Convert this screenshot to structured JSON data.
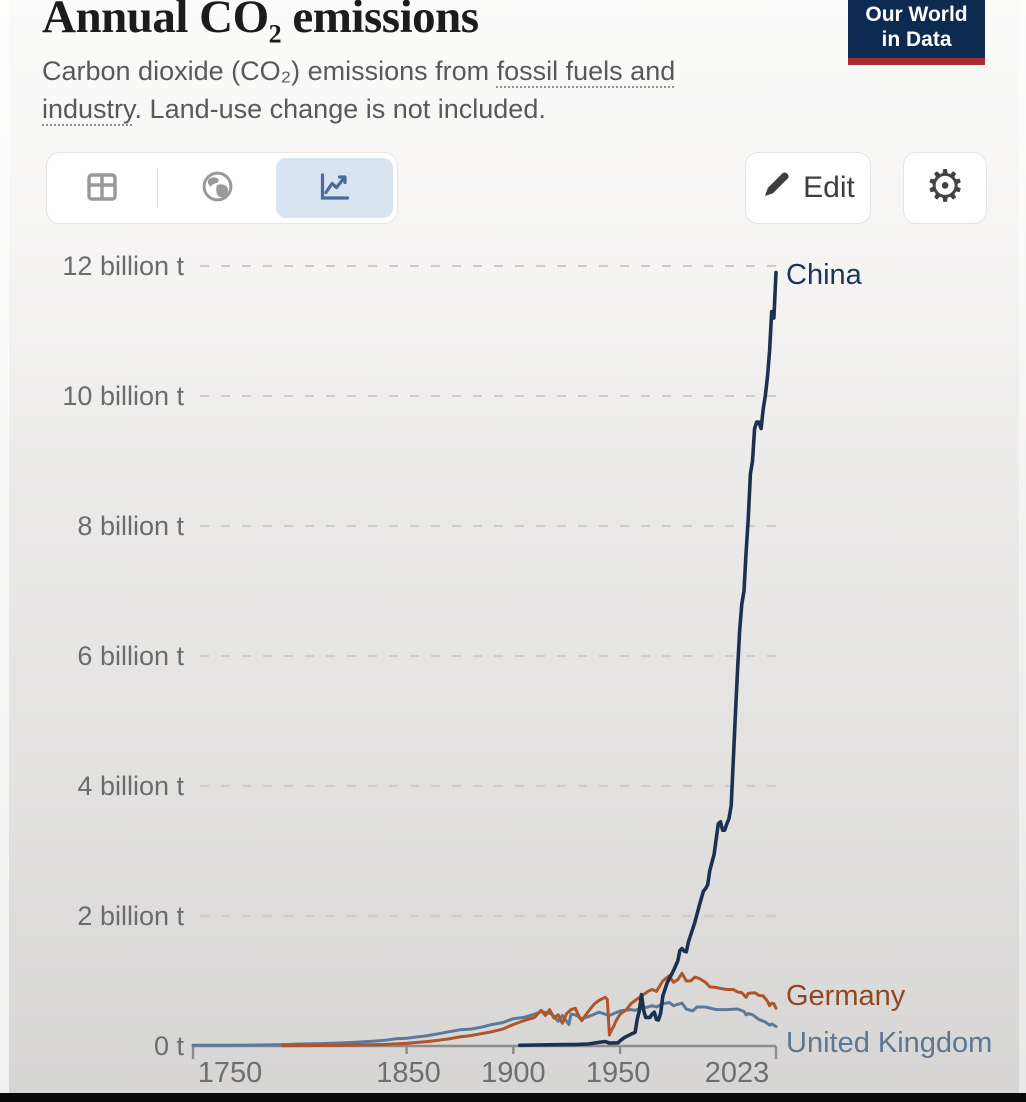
{
  "header": {
    "title": {
      "part1": "Annual CO",
      "subscript": "2",
      "part2": " emissions"
    },
    "subtitle": {
      "line1_prefix": "Carbon dioxide (CO₂) emissions from ",
      "line1_term": "fossil fuels and",
      "line2_term": "industry",
      "line2_suffix": ". Land-use change is not included."
    },
    "logo": {
      "line1": "Our World",
      "line2": "in Data"
    }
  },
  "toolbar": {
    "views": [
      {
        "name": "table-view",
        "icon": "table-icon",
        "active": false
      },
      {
        "name": "map-view",
        "icon": "globe-icon",
        "active": false
      },
      {
        "name": "chart-view",
        "icon": "line-chart-icon",
        "active": true
      }
    ],
    "edit_label": "Edit",
    "settings_icon": "⚙"
  },
  "colors": {
    "logo_navy": "#0d2a51",
    "logo_red": "#a82b35",
    "active_view_bg": "#d9e4f3",
    "active_view_icon": "#4a6a9b",
    "inactive_view_icon": "#999999",
    "gridline": "#cccccb",
    "axis": "#8c8c8c"
  },
  "chart_data": {
    "type": "line",
    "title": "Annual CO₂ emissions",
    "unit": "billion tonnes of CO₂",
    "xlim": [
      1750,
      2023
    ],
    "ylim": [
      0,
      12
    ],
    "grid": "dashed-horizontal",
    "legend_position": "right-end-labels",
    "x_ticks": [
      {
        "year": 1750,
        "label": "1750"
      },
      {
        "year": 1850,
        "label": "1850"
      },
      {
        "year": 1900,
        "label": "1900"
      },
      {
        "year": 1950,
        "label": "1950"
      },
      {
        "year": 2023,
        "label": "2023"
      }
    ],
    "y_ticks": [
      {
        "value": 0,
        "label": "0 t"
      },
      {
        "value": 2,
        "label": "2 billion t"
      },
      {
        "value": 4,
        "label": "4 billion t"
      },
      {
        "value": 6,
        "label": "6 billion t"
      },
      {
        "value": 8,
        "label": "8 billion t"
      },
      {
        "value": 10,
        "label": "10 billion t"
      },
      {
        "value": 12,
        "label": "12 billion t"
      }
    ],
    "series": [
      {
        "name": "China",
        "color": "#1c3150",
        "label_color": "#1d3357",
        "points": [
          [
            1903,
            0.01
          ],
          [
            1910,
            0.015
          ],
          [
            1920,
            0.02
          ],
          [
            1930,
            0.025
          ],
          [
            1935,
            0.03
          ],
          [
            1940,
            0.055
          ],
          [
            1943,
            0.07
          ],
          [
            1945,
            0.045
          ],
          [
            1949,
            0.05
          ],
          [
            1950,
            0.08
          ],
          [
            1952,
            0.13
          ],
          [
            1955,
            0.18
          ],
          [
            1957,
            0.21
          ],
          [
            1958,
            0.41
          ],
          [
            1959,
            0.54
          ],
          [
            1960,
            0.79
          ],
          [
            1961,
            0.55
          ],
          [
            1962,
            0.44
          ],
          [
            1964,
            0.44
          ],
          [
            1965,
            0.49
          ],
          [
            1966,
            0.52
          ],
          [
            1967,
            0.41
          ],
          [
            1968,
            0.4
          ],
          [
            1969,
            0.51
          ],
          [
            1970,
            0.77
          ],
          [
            1972,
            0.97
          ],
          [
            1975,
            1.16
          ],
          [
            1977,
            1.31
          ],
          [
            1978,
            1.47
          ],
          [
            1979,
            1.5
          ],
          [
            1980,
            1.46
          ],
          [
            1981,
            1.45
          ],
          [
            1982,
            1.6
          ],
          [
            1985,
            1.9
          ],
          [
            1987,
            2.15
          ],
          [
            1989,
            2.38
          ],
          [
            1990,
            2.42
          ],
          [
            1991,
            2.48
          ],
          [
            1992,
            2.7
          ],
          [
            1994,
            2.95
          ],
          [
            1996,
            3.42
          ],
          [
            1997,
            3.45
          ],
          [
            1998,
            3.32
          ],
          [
            1999,
            3.32
          ],
          [
            2000,
            3.42
          ],
          [
            2001,
            3.5
          ],
          [
            2002,
            3.7
          ],
          [
            2003,
            4.4
          ],
          [
            2004,
            5.1
          ],
          [
            2005,
            5.8
          ],
          [
            2006,
            6.4
          ],
          [
            2007,
            6.8
          ],
          [
            2008,
            7.0
          ],
          [
            2009,
            7.6
          ],
          [
            2010,
            8.1
          ],
          [
            2011,
            8.8
          ],
          [
            2012,
            9.0
          ],
          [
            2013,
            9.5
          ],
          [
            2014,
            9.6
          ],
          [
            2015,
            9.6
          ],
          [
            2016,
            9.5
          ],
          [
            2017,
            9.8
          ],
          [
            2018,
            10.0
          ],
          [
            2019,
            10.3
          ],
          [
            2020,
            10.7
          ],
          [
            2021,
            11.3
          ],
          [
            2022,
            11.2
          ],
          [
            2023,
            11.9
          ]
        ]
      },
      {
        "name": "Germany",
        "color": "#b0542a",
        "label_color": "#8f4820",
        "points": [
          [
            1792,
            0.003
          ],
          [
            1800,
            0.006
          ],
          [
            1810,
            0.008
          ],
          [
            1820,
            0.012
          ],
          [
            1830,
            0.017
          ],
          [
            1840,
            0.025
          ],
          [
            1850,
            0.04
          ],
          [
            1855,
            0.055
          ],
          [
            1860,
            0.07
          ],
          [
            1865,
            0.09
          ],
          [
            1870,
            0.11
          ],
          [
            1875,
            0.14
          ],
          [
            1880,
            0.16
          ],
          [
            1885,
            0.19
          ],
          [
            1890,
            0.22
          ],
          [
            1895,
            0.26
          ],
          [
            1900,
            0.33
          ],
          [
            1905,
            0.39
          ],
          [
            1910,
            0.44
          ],
          [
            1913,
            0.55
          ],
          [
            1915,
            0.47
          ],
          [
            1917,
            0.56
          ],
          [
            1919,
            0.43
          ],
          [
            1921,
            0.48
          ],
          [
            1923,
            0.35
          ],
          [
            1925,
            0.5
          ],
          [
            1927,
            0.56
          ],
          [
            1929,
            0.58
          ],
          [
            1931,
            0.44
          ],
          [
            1932,
            0.39
          ],
          [
            1934,
            0.48
          ],
          [
            1936,
            0.57
          ],
          [
            1938,
            0.65
          ],
          [
            1940,
            0.7
          ],
          [
            1943,
            0.75
          ],
          [
            1944,
            0.72
          ],
          [
            1945,
            0.17
          ],
          [
            1946,
            0.25
          ],
          [
            1947,
            0.3
          ],
          [
            1948,
            0.38
          ],
          [
            1950,
            0.49
          ],
          [
            1953,
            0.56
          ],
          [
            1955,
            0.65
          ],
          [
            1957,
            0.7
          ],
          [
            1960,
            0.77
          ],
          [
            1963,
            0.84
          ],
          [
            1965,
            0.87
          ],
          [
            1967,
            0.84
          ],
          [
            1970,
            1.0
          ],
          [
            1973,
            1.08
          ],
          [
            1975,
            0.98
          ],
          [
            1977,
            1.02
          ],
          [
            1979,
            1.12
          ],
          [
            1981,
            1.0
          ],
          [
            1983,
            1.0
          ],
          [
            1985,
            1.06
          ],
          [
            1987,
            1.04
          ],
          [
            1990,
            0.98
          ],
          [
            1992,
            0.91
          ],
          [
            1995,
            0.9
          ],
          [
            1998,
            0.88
          ],
          [
            2000,
            0.87
          ],
          [
            2003,
            0.87
          ],
          [
            2005,
            0.83
          ],
          [
            2007,
            0.82
          ],
          [
            2009,
            0.75
          ],
          [
            2010,
            0.81
          ],
          [
            2013,
            0.82
          ],
          [
            2015,
            0.78
          ],
          [
            2017,
            0.77
          ],
          [
            2019,
            0.69
          ],
          [
            2020,
            0.62
          ],
          [
            2021,
            0.66
          ],
          [
            2022,
            0.65
          ],
          [
            2023,
            0.58
          ]
        ]
      },
      {
        "name": "United Kingdom",
        "color": "#5c7998",
        "label_color": "#5d7791",
        "points": [
          [
            1750,
            0.01
          ],
          [
            1760,
            0.011
          ],
          [
            1770,
            0.013
          ],
          [
            1780,
            0.015
          ],
          [
            1790,
            0.02
          ],
          [
            1800,
            0.03
          ],
          [
            1810,
            0.037
          ],
          [
            1820,
            0.048
          ],
          [
            1825,
            0.055
          ],
          [
            1830,
            0.065
          ],
          [
            1835,
            0.075
          ],
          [
            1840,
            0.09
          ],
          [
            1845,
            0.11
          ],
          [
            1850,
            0.12
          ],
          [
            1855,
            0.14
          ],
          [
            1860,
            0.16
          ],
          [
            1865,
            0.19
          ],
          [
            1870,
            0.22
          ],
          [
            1875,
            0.25
          ],
          [
            1880,
            0.26
          ],
          [
            1885,
            0.29
          ],
          [
            1890,
            0.33
          ],
          [
            1895,
            0.36
          ],
          [
            1900,
            0.42
          ],
          [
            1905,
            0.44
          ],
          [
            1910,
            0.49
          ],
          [
            1913,
            0.53
          ],
          [
            1916,
            0.51
          ],
          [
            1918,
            0.49
          ],
          [
            1921,
            0.38
          ],
          [
            1923,
            0.47
          ],
          [
            1926,
            0.33
          ],
          [
            1927,
            0.49
          ],
          [
            1929,
            0.48
          ],
          [
            1932,
            0.42
          ],
          [
            1935,
            0.45
          ],
          [
            1938,
            0.49
          ],
          [
            1940,
            0.52
          ],
          [
            1945,
            0.47
          ],
          [
            1950,
            0.54
          ],
          [
            1955,
            0.56
          ],
          [
            1957,
            0.55
          ],
          [
            1960,
            0.58
          ],
          [
            1963,
            0.6
          ],
          [
            1965,
            0.62
          ],
          [
            1967,
            0.6
          ],
          [
            1970,
            0.65
          ],
          [
            1973,
            0.67
          ],
          [
            1975,
            0.62
          ],
          [
            1979,
            0.66
          ],
          [
            1981,
            0.57
          ],
          [
            1984,
            0.54
          ],
          [
            1986,
            0.6
          ],
          [
            1990,
            0.6
          ],
          [
            1995,
            0.56
          ],
          [
            2000,
            0.56
          ],
          [
            2005,
            0.57
          ],
          [
            2008,
            0.53
          ],
          [
            2009,
            0.48
          ],
          [
            2010,
            0.5
          ],
          [
            2012,
            0.48
          ],
          [
            2015,
            0.41
          ],
          [
            2018,
            0.37
          ],
          [
            2020,
            0.32
          ],
          [
            2021,
            0.34
          ],
          [
            2023,
            0.3
          ]
        ]
      }
    ]
  }
}
